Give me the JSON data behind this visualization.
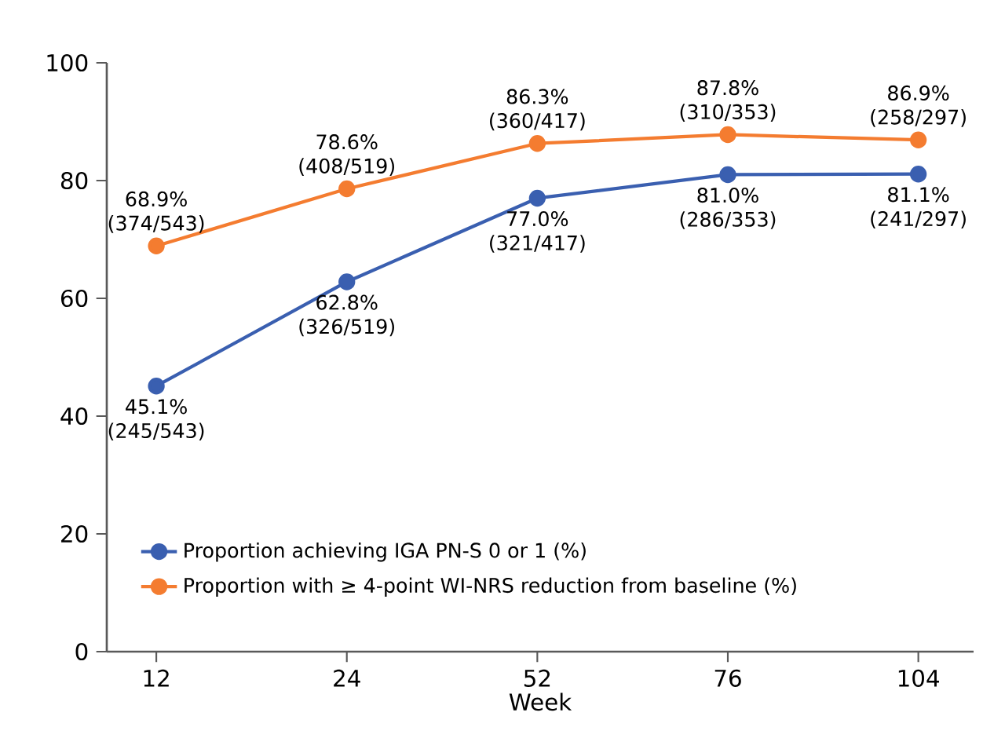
{
  "chart_data": {
    "type": "line",
    "xlabel": "Week",
    "categories": [
      "12",
      "24",
      "52",
      "76",
      "104"
    ],
    "ylim": [
      0,
      100
    ],
    "yticks": [
      0,
      20,
      40,
      60,
      80,
      100
    ],
    "marker": "circle",
    "legend": "bottom left",
    "grid": false,
    "series": [
      {
        "name": "Proportion achieving IGA PN-S 0 or 1 (%)",
        "color": "#3a5fb0",
        "values": [
          45.1,
          62.8,
          77.0,
          81.0,
          81.1
        ],
        "value_labels": [
          "45.1% (245/543)",
          "62.8% (326/519)",
          "77.0% (321/417)",
          "81.0% (286/353)",
          "81.1% (241/297)"
        ]
      },
      {
        "name": "Proportion with ≥ 4-point WI-NRS reduction from baseline (%)",
        "color": "#f47c30",
        "values": [
          68.9,
          78.6,
          86.3,
          87.8,
          86.9
        ],
        "value_labels": [
          "68.9% (374/543)",
          "78.6% (408/519)",
          "86.3% (360/417)",
          "87.8% (310/353)",
          "86.9% (258/297)"
        ]
      }
    ]
  }
}
